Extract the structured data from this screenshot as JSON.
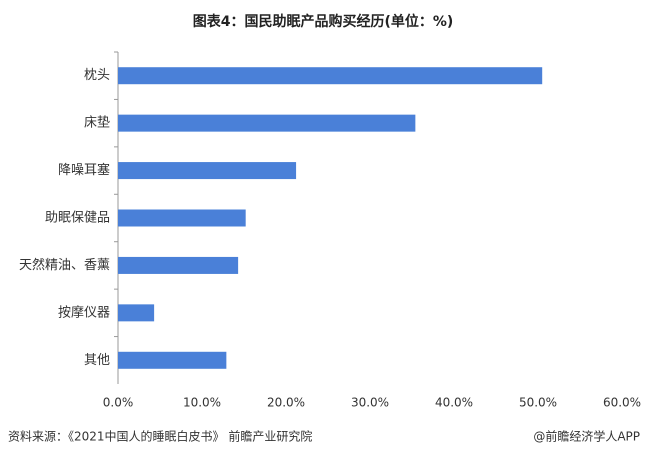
{
  "chart_data": {
    "type": "bar",
    "orientation": "horizontal",
    "title": "图表4：国民助眠产品购买经历(单位：%)",
    "categories": [
      "枕头",
      "床垫",
      "降噪耳塞",
      "助眠保健品",
      "天然精油、香薰",
      "按摩仪器",
      "其他"
    ],
    "values": [
      50.5,
      35.4,
      21.2,
      15.2,
      14.3,
      4.3,
      12.9
    ],
    "color": "#4a80d8",
    "xlim": [
      0,
      60
    ],
    "xticks": [
      {
        "value": 0,
        "label": "0.0%"
      },
      {
        "value": 10,
        "label": "10.0%"
      },
      {
        "value": 20,
        "label": "20.0%"
      },
      {
        "value": 30,
        "label": "30.0%"
      },
      {
        "value": 40,
        "label": "40.0%"
      },
      {
        "value": 50,
        "label": "50.0%"
      },
      {
        "value": 60,
        "label": "60.0%"
      }
    ],
    "grid": false,
    "source": "资料来源：《2021中国人的睡眠白皮书》 前瞻产业研究院",
    "credit": "@前瞻经济学人APP"
  }
}
